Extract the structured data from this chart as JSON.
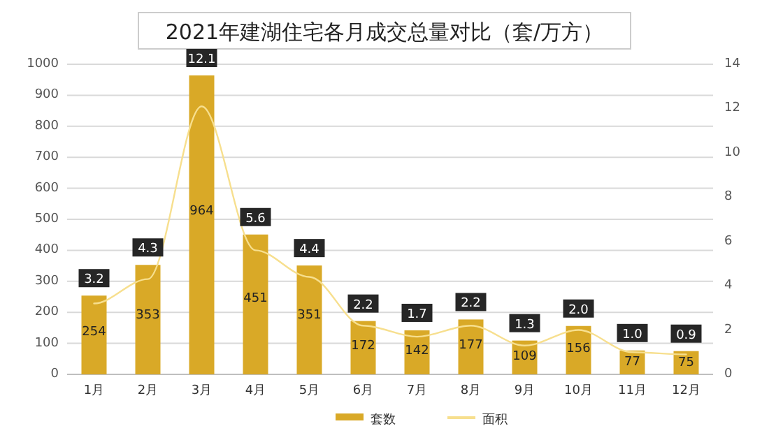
{
  "chart_data": {
    "type": "bar",
    "title": "2021年建湖住宅各月成交总量对比（套/万方）",
    "categories": [
      "1月",
      "2月",
      "3月",
      "4月",
      "5月",
      "6月",
      "7月",
      "8月",
      "9月",
      "10月",
      "11月",
      "12月"
    ],
    "series": [
      {
        "name": "套数",
        "color": "#d9a927",
        "values": [
          254,
          353,
          964,
          451,
          351,
          172,
          142,
          177,
          109,
          156,
          77,
          75
        ],
        "value_labels": [
          "254",
          "353",
          "964",
          "451",
          "351",
          "172",
          "142",
          "177",
          "109",
          "156",
          "77",
          "75"
        ]
      },
      {
        "name": "面积",
        "type": "line",
        "axis": "y2",
        "color": "#f7df8e",
        "values": [
          3.2,
          4.3,
          12.1,
          5.6,
          4.4,
          2.2,
          1.7,
          2.2,
          1.3,
          2.0,
          1.0,
          0.9
        ],
        "value_labels": [
          "3.2",
          "4.3",
          "12.1",
          "5.6",
          "4.4",
          "2.2",
          "1.7",
          "2.2",
          "1.3",
          "2.0",
          "1.0",
          "0.9"
        ]
      }
    ],
    "ylim": [
      0,
      1000
    ],
    "yticks": [
      0,
      100,
      200,
      300,
      400,
      500,
      600,
      700,
      800,
      900,
      1000
    ],
    "y2lim": [
      0,
      14
    ],
    "y2ticks": [
      0,
      2,
      4,
      6,
      8,
      10,
      12,
      14
    ],
    "grid": "y",
    "legend": "bottom"
  }
}
